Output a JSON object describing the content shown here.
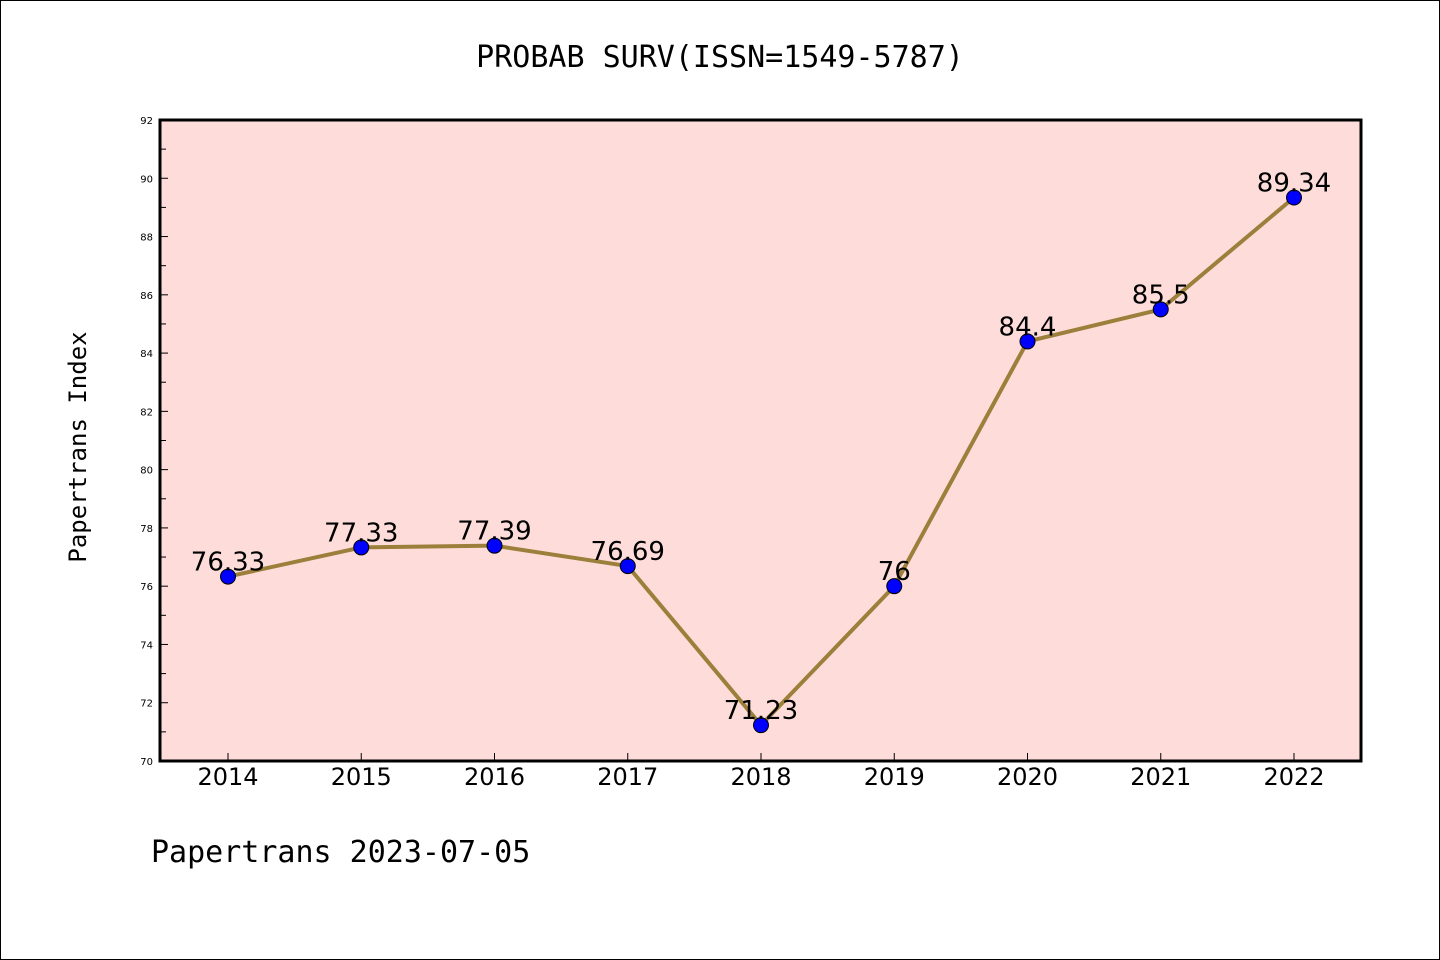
{
  "chart_data": {
    "type": "line",
    "title": "PROBAB SURV(ISSN=1549-5787)",
    "xlabel": "",
    "ylabel": "Papertrans Index",
    "categories": [
      "2014",
      "2015",
      "2016",
      "2017",
      "2018",
      "2019",
      "2020",
      "2021",
      "2022"
    ],
    "series": [
      {
        "values": [
          76.33,
          77.33,
          77.39,
          76.69,
          71.23,
          76,
          84.4,
          85.5,
          89.34
        ],
        "labels": [
          "76.33",
          "77.33",
          "77.39",
          "76.69",
          "71.23",
          "76",
          "84.4",
          "85.5",
          "89.34"
        ],
        "line_color": "#9b7f3a",
        "marker_color": "#0000ff"
      }
    ],
    "ylim": [
      70,
      92
    ],
    "yticks": [
      "70",
      "72",
      "74",
      "76",
      "78",
      "80",
      "82",
      "84",
      "86",
      "88",
      "90",
      "92"
    ],
    "plot_background": "#fddcda",
    "grid": false,
    "legend": "none"
  },
  "footer": "Papertrans 2023-07-05"
}
